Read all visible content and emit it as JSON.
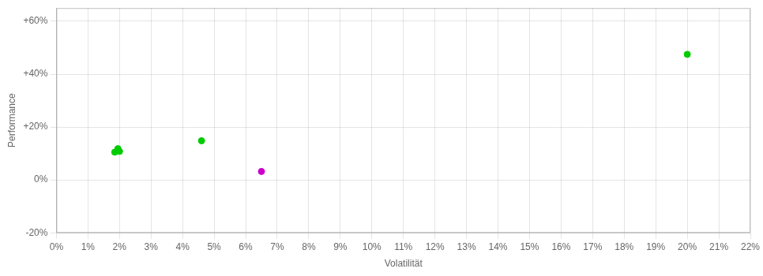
{
  "chart_data": {
    "type": "scatter",
    "xlabel": "Volatilität",
    "ylabel": "Performance",
    "x": [
      0.0185,
      0.0195,
      0.02,
      0.046,
      0.065,
      0.2
    ],
    "values": [
      0.105,
      0.118,
      0.108,
      0.148,
      0.032,
      0.475
    ],
    "colors": [
      "#00cc00",
      "#00cc00",
      "#00cc00",
      "#00cc00",
      "#cc00cc",
      "#00cc00"
    ],
    "xlim": [
      0.0,
      0.22
    ],
    "ylim": [
      -0.2,
      0.65
    ],
    "xticks": [
      {
        "value": 0.0,
        "label": "0%"
      },
      {
        "value": 0.01,
        "label": "1%"
      },
      {
        "value": 0.02,
        "label": "2%"
      },
      {
        "value": 0.03,
        "label": "3%"
      },
      {
        "value": 0.04,
        "label": "4%"
      },
      {
        "value": 0.05,
        "label": "5%"
      },
      {
        "value": 0.06,
        "label": "6%"
      },
      {
        "value": 0.07,
        "label": "7%"
      },
      {
        "value": 0.08,
        "label": "8%"
      },
      {
        "value": 0.09,
        "label": "9%"
      },
      {
        "value": 0.1,
        "label": "10%"
      },
      {
        "value": 0.11,
        "label": "11%"
      },
      {
        "value": 0.12,
        "label": "12%"
      },
      {
        "value": 0.13,
        "label": "13%"
      },
      {
        "value": 0.14,
        "label": "14%"
      },
      {
        "value": 0.15,
        "label": "15%"
      },
      {
        "value": 0.16,
        "label": "16%"
      },
      {
        "value": 0.17,
        "label": "17%"
      },
      {
        "value": 0.18,
        "label": "18%"
      },
      {
        "value": 0.19,
        "label": "19%"
      },
      {
        "value": 0.2,
        "label": "20%"
      },
      {
        "value": 0.21,
        "label": "21%"
      },
      {
        "value": 0.22,
        "label": "22%"
      }
    ],
    "yticks": [
      {
        "value": -0.2,
        "label": "-20%"
      },
      {
        "value": 0.0,
        "label": "0%"
      },
      {
        "value": 0.2,
        "label": "+20%"
      },
      {
        "value": 0.4,
        "label": "+40%"
      },
      {
        "value": 0.6,
        "label": "+60%"
      }
    ],
    "grid": true
  }
}
